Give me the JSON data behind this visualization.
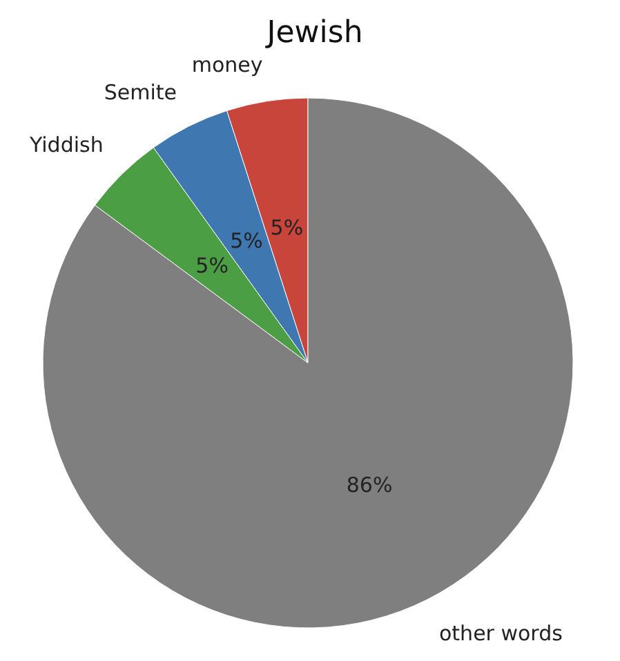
{
  "chart_data": {
    "type": "pie",
    "title": "Jewish",
    "categories": [
      "money",
      "Semite",
      "Yiddish",
      "other words"
    ],
    "values": [
      5,
      5,
      5,
      86
    ],
    "colors": [
      "#c8453b",
      "#3f77b1",
      "#4c9e44",
      "#7f7f7f"
    ],
    "value_labels": [
      "5%",
      "5%",
      "5%",
      "86%"
    ]
  }
}
